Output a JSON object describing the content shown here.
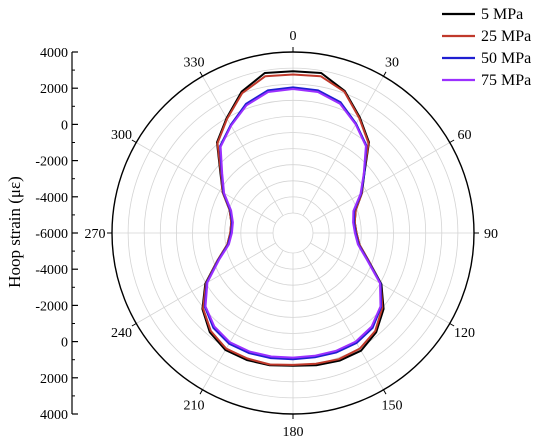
{
  "chart_data": {
    "type": "polar-line",
    "ylabel": "Hoop strain (με)",
    "angular_ticks": [
      "0",
      "30",
      "60",
      "90",
      "120",
      "150",
      "180",
      "210",
      "240",
      "270",
      "300",
      "330"
    ],
    "radial_tick_labels": [
      "4000",
      "2000",
      "0",
      "-2000",
      "-4000",
      "-6000",
      "-4000",
      "-2000",
      "0",
      "2000",
      "4000"
    ],
    "radial_range": [
      -6000,
      4000
    ],
    "grid": true,
    "legend_position": "top-right",
    "series": [
      {
        "name": "5 MPa",
        "color": "#000000",
        "angles": [
          0,
          10,
          20,
          30,
          40,
          50,
          60,
          70,
          80,
          90,
          100,
          110,
          120,
          130,
          140,
          150,
          160,
          170,
          180,
          190,
          200,
          210,
          220,
          230,
          240,
          250,
          260,
          270,
          280,
          290,
          300,
          310,
          320,
          330,
          340,
          350
        ],
        "values": [
          2800,
          2850,
          2150,
          1050,
          100,
          -1450,
          -2300,
          -3100,
          -3350,
          -3300,
          -3050,
          -2250,
          -900,
          100,
          800,
          1200,
          1200,
          1100,
          1000,
          1100,
          1150,
          1150,
          800,
          100,
          -950,
          -2250,
          -3100,
          -3350,
          -3350,
          -3050,
          -2200,
          -1350,
          100,
          1000,
          2100,
          2850
        ]
      },
      {
        "name": "25 MPa",
        "color": "#c0392b",
        "angles": [
          0,
          10,
          20,
          30,
          40,
          50,
          60,
          70,
          80,
          90,
          100,
          110,
          120,
          130,
          140,
          150,
          160,
          170,
          180,
          190,
          200,
          210,
          220,
          230,
          240,
          250,
          260,
          270,
          280,
          290,
          300,
          310,
          320,
          330,
          340,
          350
        ],
        "values": [
          2600,
          2650,
          2100,
          1000,
          50,
          -1500,
          -2300,
          -3100,
          -3350,
          -3300,
          -3050,
          -2250,
          -950,
          0,
          700,
          1050,
          1100,
          1000,
          950,
          1050,
          1050,
          1050,
          700,
          50,
          -1000,
          -2250,
          -3100,
          -3350,
          -3350,
          -3050,
          -2200,
          -1400,
          50,
          950,
          2000,
          2650
        ]
      },
      {
        "name": "50 MPa",
        "color": "#1f1fd1",
        "angles": [
          0,
          10,
          20,
          30,
          40,
          50,
          60,
          70,
          80,
          90,
          100,
          110,
          120,
          130,
          140,
          150,
          160,
          170,
          180,
          190,
          200,
          210,
          220,
          230,
          240,
          250,
          260,
          270,
          280,
          290,
          300,
          310,
          320,
          330,
          340,
          350
        ],
        "values": [
          1800,
          1750,
          1400,
          600,
          -150,
          -1450,
          -2350,
          -3200,
          -3400,
          -3350,
          -3100,
          -2300,
          -950,
          -100,
          450,
          650,
          650,
          600,
          600,
          650,
          700,
          700,
          450,
          -100,
          -1050,
          -2300,
          -3150,
          -3400,
          -3400,
          -3100,
          -2250,
          -1450,
          -200,
          500,
          1300,
          1750
        ]
      },
      {
        "name": "75 MPa",
        "color": "#9b30ff",
        "angles": [
          0,
          10,
          20,
          30,
          40,
          50,
          60,
          70,
          80,
          90,
          100,
          110,
          120,
          130,
          140,
          150,
          160,
          170,
          180,
          190,
          200,
          210,
          220,
          230,
          240,
          250,
          260,
          270,
          280,
          290,
          300,
          310,
          320,
          330,
          340,
          350
        ],
        "values": [
          1700,
          1650,
          1300,
          550,
          -200,
          -1500,
          -2400,
          -3250,
          -3450,
          -3400,
          -3150,
          -2350,
          -1000,
          -150,
          350,
          550,
          550,
          500,
          500,
          550,
          600,
          600,
          350,
          -150,
          -1100,
          -2350,
          -3200,
          -3450,
          -3450,
          -3150,
          -2300,
          -1500,
          -250,
          450,
          1200,
          1650
        ]
      }
    ]
  }
}
